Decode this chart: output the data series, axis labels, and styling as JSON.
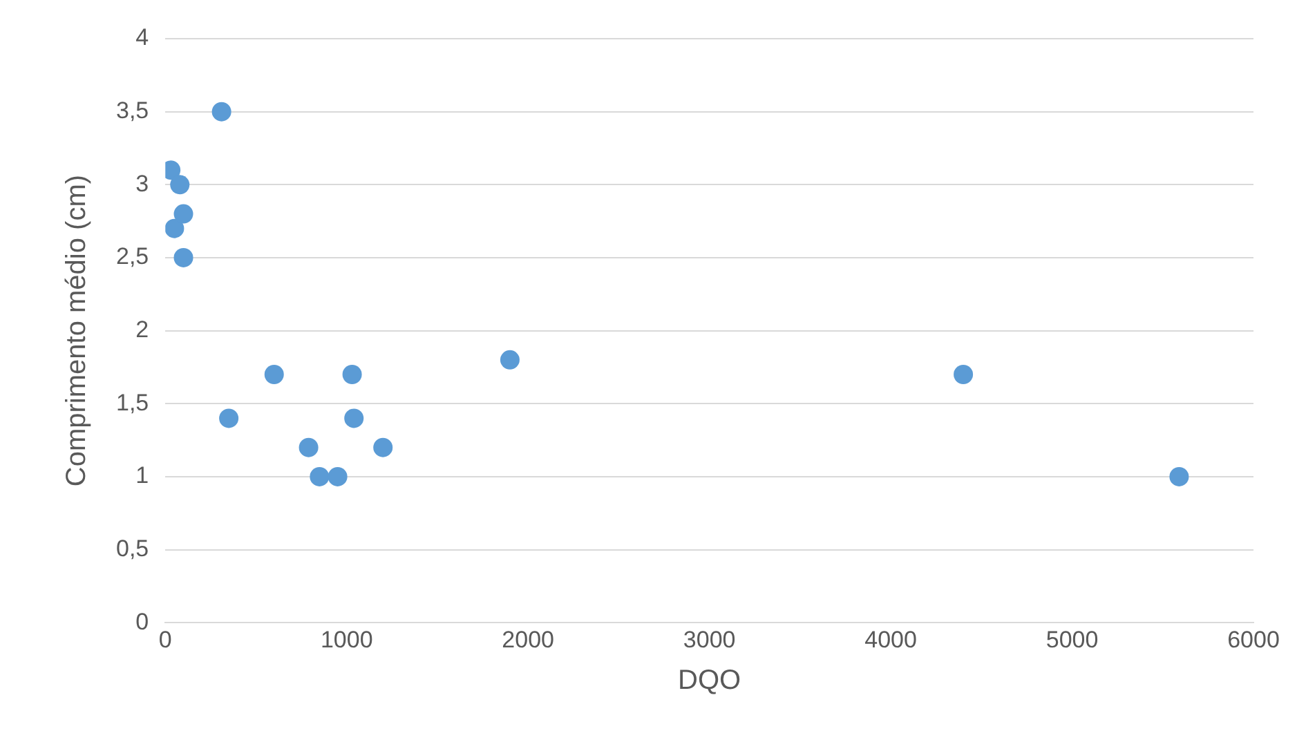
{
  "chart_data": {
    "type": "scatter",
    "xlabel": "DQO",
    "ylabel": "Comprimento médio (cm)",
    "x": [
      30,
      80,
      50,
      100,
      100,
      310,
      350,
      600,
      790,
      850,
      950,
      1030,
      1040,
      1200,
      1900,
      4400,
      5590
    ],
    "series": [
      {
        "color": "#5b9bd5",
        "values": [
          3.1,
          3.0,
          2.7,
          2.8,
          2.5,
          3.5,
          1.4,
          1.7,
          1.2,
          1.0,
          1.0,
          1.7,
          1.4,
          1.2,
          1.8,
          1.7,
          1.0
        ]
      }
    ],
    "xlim": [
      0,
      6000
    ],
    "xticks": [
      0,
      1000,
      2000,
      3000,
      4000,
      5000,
      6000
    ],
    "ylim": [
      0,
      4
    ],
    "yticks": [
      0,
      {
        "value": 0.5,
        "label": "0,5"
      },
      1,
      {
        "value": 1.5,
        "label": "1,5"
      },
      2,
      {
        "value": 2.5,
        "label": "2,5"
      },
      3,
      {
        "value": 3.5,
        "label": "3,5"
      },
      4
    ],
    "grid": "y",
    "legend": false,
    "marker": "circle"
  }
}
